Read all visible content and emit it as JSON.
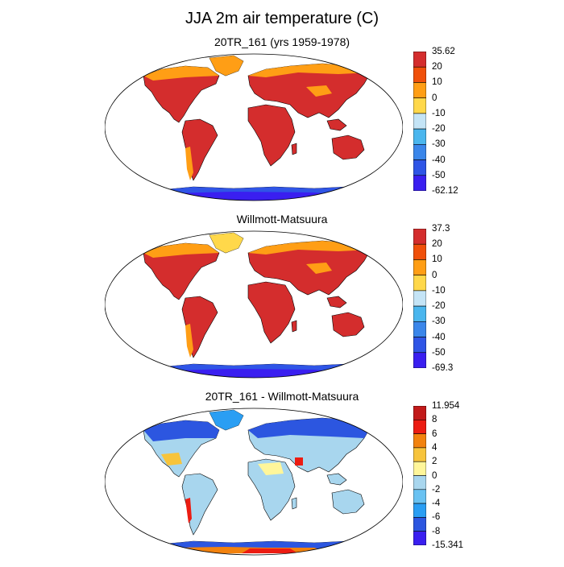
{
  "figure": {
    "title": "JJA 2m air temperature (C)"
  },
  "colors": {
    "absolute_scale": [
      "#3a1ff0",
      "#2f55e6",
      "#3a86ea",
      "#4ab6ee",
      "#c4e4f6",
      "#ffd84a",
      "#ff9e15",
      "#f0500a",
      "#d42d2d"
    ],
    "difference_scale": [
      "#3a1ff0",
      "#2c56e0",
      "#2a9ef3",
      "#69c2f2",
      "#a8d6ee",
      "#fff69a",
      "#f7c43c",
      "#f2820e",
      "#ec1c12",
      "#c21a1a"
    ],
    "map_border": "#000000"
  },
  "panels": [
    {
      "id": "model",
      "title": "20TR_161 (yrs 1959-1978)",
      "scale": "absolute_scale",
      "colorbar_labels": [
        "35.62",
        "20",
        "10",
        "0",
        "-10",
        "-20",
        "-30",
        "-40",
        "-50",
        "-62.12"
      ],
      "colorbar_min": -62.12,
      "colorbar_max": 35.62
    },
    {
      "id": "observed",
      "title": "Willmott-Matsuura",
      "scale": "absolute_scale",
      "colorbar_labels": [
        "37.3",
        "20",
        "10",
        "0",
        "-10",
        "-20",
        "-30",
        "-40",
        "-50",
        "-69.3"
      ],
      "colorbar_min": -69.3,
      "colorbar_max": 37.3
    },
    {
      "id": "difference",
      "title": "20TR_161 - Willmott-Matsuura",
      "scale": "difference_scale",
      "colorbar_labels": [
        "11.954",
        "8",
        "6",
        "4",
        "2",
        "0",
        "-2",
        "-4",
        "-6",
        "-8",
        "-15.341"
      ],
      "colorbar_min": -15.341,
      "colorbar_max": 11.954
    }
  ]
}
